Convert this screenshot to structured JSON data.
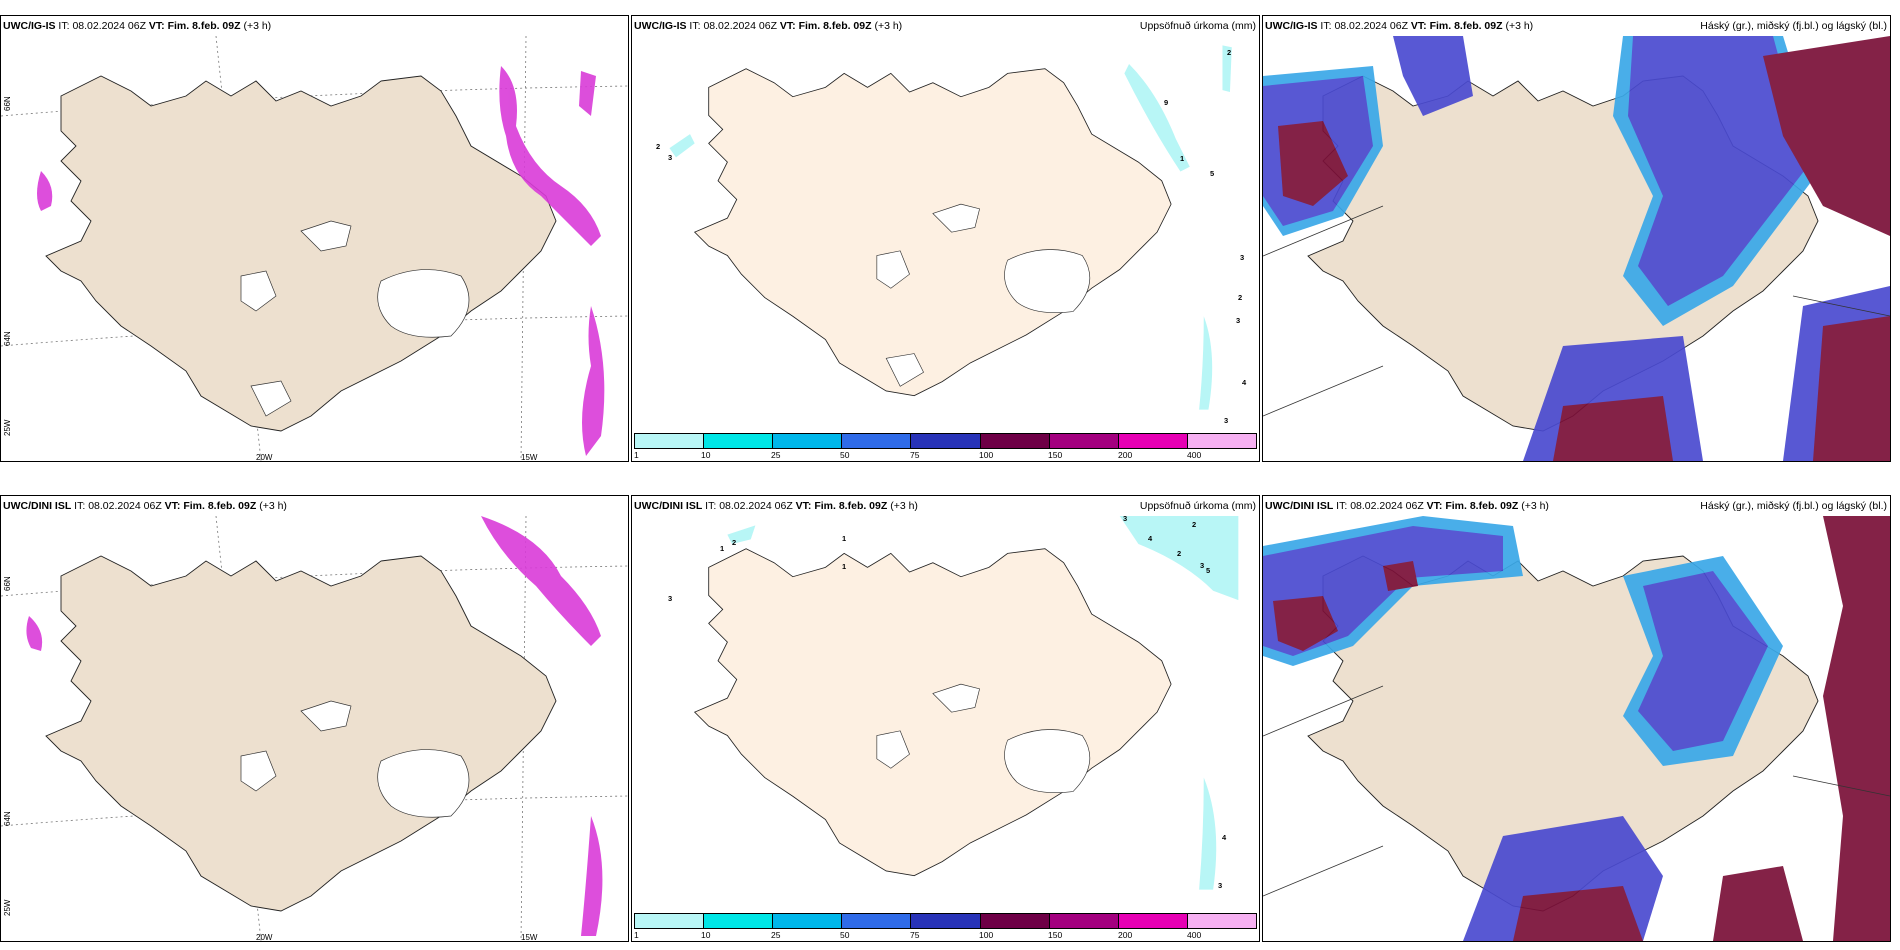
{
  "panels": [
    {
      "model": "UWC/IG-IS",
      "it_label": "IT:",
      "it": "08.02.2024 06Z",
      "vt_label": "VT:",
      "vt": "Fim. 8.feb. 09Z",
      "lead": "(+3 h)",
      "title": "",
      "lon_labels": [
        "20W",
        "15W"
      ],
      "lat_labels": [
        "66N",
        "64N",
        "25W"
      ]
    },
    {
      "model": "UWC/IG-IS",
      "it_label": "IT:",
      "it": "08.02.2024 06Z",
      "vt_label": "VT:",
      "vt": "Fim. 8.feb. 09Z",
      "lead": "(+3 h)",
      "title": "Uppsöfnuð úrkoma (mm)",
      "amounts": [
        "2",
        "9",
        "1",
        "5",
        "3",
        "2",
        "3",
        "4",
        "3",
        "2",
        "3"
      ]
    },
    {
      "model": "UWC/IG-IS",
      "it_label": "IT:",
      "it": "08.02.2024 06Z",
      "vt_label": "VT:",
      "vt": "Fim. 8.feb. 09Z",
      "lead": "(+3 h)",
      "title": "Háský (gr.), miðský (fj.bl.) og lágský (bl.)"
    },
    {
      "model": "UWC/DINI ISL",
      "it_label": "IT:",
      "it": "08.02.2024 06Z",
      "vt_label": "VT:",
      "vt": "Fim. 8.feb. 09Z",
      "lead": "(+3 h)",
      "title": "",
      "lon_labels": [
        "20W",
        "15W"
      ],
      "lat_labels": [
        "66N",
        "64N",
        "25W"
      ]
    },
    {
      "model": "UWC/DINI ISL",
      "it_label": "IT:",
      "it": "08.02.2024 06Z",
      "vt_label": "VT:",
      "vt": "Fim. 8.feb. 09Z",
      "lead": "(+3 h)",
      "title": "Uppsöfnuð úrkoma (mm)",
      "amounts": [
        "1",
        "2",
        "1",
        "1",
        "3",
        "3",
        "4",
        "2",
        "2",
        "3",
        "5",
        "4",
        "3"
      ]
    },
    {
      "model": "UWC/DINI ISL",
      "it_label": "IT:",
      "it": "08.02.2024 06Z",
      "vt_label": "VT:",
      "vt": "Fim. 8.feb. 09Z",
      "lead": "(+3 h)",
      "title": "Háský (gr.), miðský (fj.bl.) og lágský (bl.)"
    }
  ],
  "precip_legend": {
    "ticks": [
      "1",
      "10",
      "25",
      "50",
      "75",
      "100",
      "150",
      "200",
      "400"
    ],
    "colors": [
      "#b8f6f6",
      "#00e6e6",
      "#00b7ea",
      "#2f6be8",
      "#2833b8",
      "#6e0046",
      "#a3007f",
      "#e600b4",
      "#f6b0f2"
    ]
  },
  "colors": {
    "land": "#ede0cf",
    "land_precip": "#fdf0e2",
    "magenta": "#d93bd8",
    "high_cloud": "#7a1038",
    "mid_cloud": "#4a4ad0",
    "low_cloud": "#3aa8e8"
  }
}
